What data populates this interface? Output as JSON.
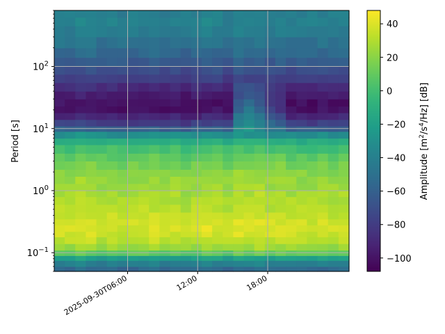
{
  "chart_data": {
    "type": "heatmap",
    "title": "",
    "xlabel": "",
    "ylabel": "Period [s]",
    "colorbar_label_parts": [
      "Amplitude [m",
      "2",
      "/s",
      "4",
      "/Hz] [dB]"
    ],
    "y_scale": "log",
    "ylim": [
      0.05,
      800
    ],
    "xlim": [
      "2025-09-29T23:43:00",
      "2025-10-01T00:58:00"
    ],
    "x_ticks": [
      {
        "value": "2025-09-30T06:00:00",
        "label": "2025-09-30T06:00"
      },
      {
        "value": "2025-09-30T12:00:00",
        "label": "12:00"
      },
      {
        "value": "2025-09-30T18:00:00",
        "label": "18:00"
      }
    ],
    "y_ticks": [
      {
        "value": 0.1,
        "base": "10",
        "exp": "−1"
      },
      {
        "value": 1,
        "base": "10",
        "exp": "0"
      },
      {
        "value": 10,
        "base": "10",
        "exp": "1"
      },
      {
        "value": 100,
        "base": "10",
        "exp": "2"
      }
    ],
    "color_scale": {
      "colormap": "viridis",
      "min": -108,
      "max": 48,
      "ticks": [
        40,
        20,
        0,
        -20,
        -40,
        -60,
        -80,
        -100
      ]
    },
    "grid": true,
    "heat": {
      "n_time_bins": 28,
      "period_edges": [
        0.05,
        0.06,
        0.075,
        0.09,
        0.11,
        0.14,
        0.18,
        0.22,
        0.28,
        0.35,
        0.45,
        0.6,
        0.8,
        1.0,
        1.3,
        1.7,
        2.2,
        3.0,
        4.0,
        5.5,
        7.0,
        9.0,
        11.0,
        14.0,
        18.0,
        23.0,
        30.0,
        40.0,
        55.0,
        75.0,
        100.0,
        140.0,
        200.0,
        300.0,
        450.0,
        620.0,
        800.0
      ],
      "base_profile_db": [
        -55,
        -40,
        -20,
        10,
        25,
        33,
        37,
        39,
        38,
        35,
        32,
        30,
        28,
        26,
        24,
        21,
        16,
        10,
        2,
        -10,
        -30,
        -60,
        -78,
        -90,
        -100,
        -100,
        -95,
        -88,
        -78,
        -70,
        -62,
        -55,
        -48,
        -42,
        -38,
        -40
      ],
      "event": {
        "time_bin_start": 17,
        "time_bin_end": 21,
        "peak_bin": 18,
        "period_min": 8,
        "period_max": 60,
        "boost_db": 60
      }
    }
  }
}
